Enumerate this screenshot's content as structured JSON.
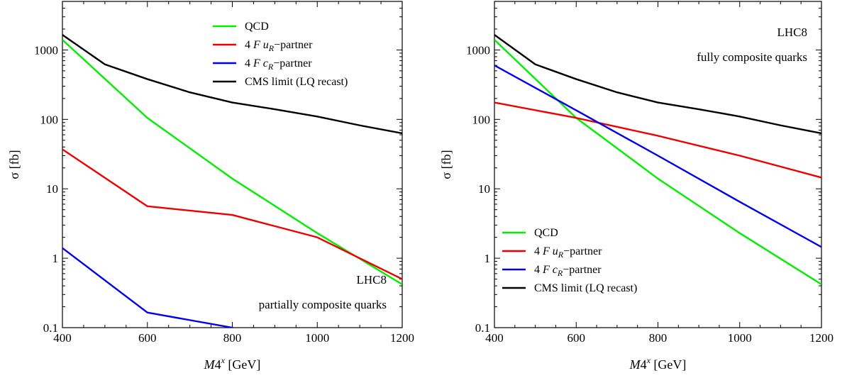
{
  "chart_data": [
    {
      "type": "line",
      "xlabel": "M_4^x [GeV]",
      "ylabel": "σ [fb]",
      "xlim": [
        400,
        1200
      ],
      "ylim": [
        0.1,
        5000
      ],
      "yscale": "log",
      "xticks": [
        400,
        600,
        800,
        1000,
        1200
      ],
      "yticks": [
        0.1,
        1,
        10,
        100,
        1000
      ],
      "xtick_labels": [
        "400",
        "600",
        "800",
        "1000",
        "1200"
      ],
      "ytick_labels": [
        "0.1",
        "1",
        "10",
        "100",
        "1000"
      ],
      "legend_position": "top-right",
      "annotations": [
        "LHC8",
        "partially composite quarks"
      ],
      "annotation_position": "bottom-right",
      "series": [
        {
          "name": "QCD",
          "color": "#00ee00",
          "x": [
            400,
            600,
            800,
            1000,
            1200
          ],
          "y": [
            1400,
            105,
            14,
            2.3,
            0.42
          ]
        },
        {
          "name": "4 F u_R−partner",
          "color": "#ee0000",
          "x": [
            400,
            600,
            800,
            1000,
            1200
          ],
          "y": [
            37,
            5.6,
            4.2,
            2.0,
            0.5
          ]
        },
        {
          "name": "4 F c_R−partner",
          "color": "#0000ee",
          "x": [
            400,
            600,
            800,
            810
          ],
          "y": [
            1.4,
            0.165,
            0.1,
            0.095
          ]
        },
        {
          "name": "CMS limit (LQ recast)",
          "color": "#000000",
          "x": [
            400,
            500,
            600,
            700,
            800,
            900,
            1000,
            1100,
            1200
          ],
          "y": [
            1650,
            620,
            380,
            245,
            175,
            140,
            110,
            82,
            63
          ]
        }
      ]
    },
    {
      "type": "line",
      "xlabel": "M_4^x [GeV]",
      "ylabel": "σ [fb]",
      "xlim": [
        400,
        1200
      ],
      "ylim": [
        0.1,
        5000
      ],
      "yscale": "log",
      "xticks": [
        400,
        600,
        800,
        1000,
        1200
      ],
      "yticks": [
        0.1,
        1,
        10,
        100,
        1000
      ],
      "xtick_labels": [
        "400",
        "600",
        "800",
        "1000",
        "1200"
      ],
      "ytick_labels": [
        "0.1",
        "1",
        "10",
        "100",
        "1000"
      ],
      "legend_position": "bottom-left",
      "annotations": [
        "LHC8",
        "fully composite quarks"
      ],
      "annotation_position": "top-right",
      "series": [
        {
          "name": "QCD",
          "color": "#00ee00",
          "x": [
            400,
            600,
            800,
            1000,
            1200
          ],
          "y": [
            1400,
            105,
            14,
            2.3,
            0.42
          ]
        },
        {
          "name": "4 F u_R−partner",
          "color": "#ee0000",
          "x": [
            400,
            600,
            800,
            1000,
            1200
          ],
          "y": [
            175,
            105,
            58,
            30,
            14.5
          ]
        },
        {
          "name": "4 F c_R−partner",
          "color": "#0000ee",
          "x": [
            400,
            600,
            800,
            1000,
            1200
          ],
          "y": [
            600,
            135,
            30,
            6.5,
            1.45
          ]
        },
        {
          "name": "CMS limit (LQ recast)",
          "color": "#000000",
          "x": [
            400,
            500,
            600,
            700,
            800,
            900,
            1000,
            1100,
            1200
          ],
          "y": [
            1650,
            620,
            380,
            245,
            175,
            140,
            110,
            82,
            63
          ]
        }
      ]
    }
  ]
}
